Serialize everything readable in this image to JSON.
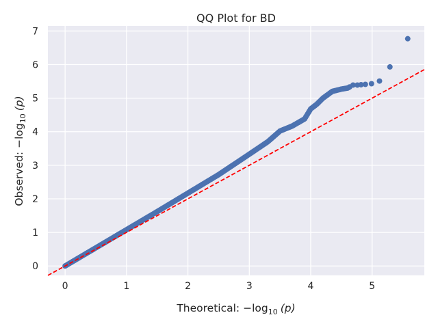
{
  "chart_data": {
    "type": "scatter",
    "title": "QQ Plot for BD",
    "xlabel": {
      "prefix": "Theoretical: ",
      "func": "−log",
      "sub": "10",
      "arg": "(p)"
    },
    "ylabel": {
      "prefix": "Observed: ",
      "func": "−log",
      "sub": "10",
      "arg": "(p)"
    },
    "xlim": [
      -0.28,
      5.85
    ],
    "ylim": [
      -0.28,
      7.15
    ],
    "xticks": [
      0,
      1,
      2,
      3,
      4,
      5
    ],
    "yticks": [
      0,
      1,
      2,
      3,
      4,
      5,
      6,
      7
    ],
    "grid": true,
    "series": [
      {
        "kind": "points",
        "color": "#4c72b0",
        "curve": [
          [
            0,
            0
          ],
          [
            0.5,
            0.54
          ],
          [
            1.0,
            1.08
          ],
          [
            1.5,
            1.62
          ],
          [
            2.0,
            2.17
          ],
          [
            2.5,
            2.72
          ],
          [
            3.0,
            3.33
          ],
          [
            3.3,
            3.7
          ],
          [
            3.5,
            4.02
          ],
          [
            3.7,
            4.17
          ],
          [
            3.9,
            4.38
          ],
          [
            4.0,
            4.68
          ],
          [
            4.1,
            4.82
          ],
          [
            4.2,
            5.0
          ],
          [
            4.35,
            5.2
          ],
          [
            4.5,
            5.27
          ],
          [
            4.6,
            5.3
          ],
          [
            4.65,
            5.35
          ]
        ],
        "tail": [
          [
            4.69,
            5.39
          ],
          [
            4.76,
            5.39
          ],
          [
            4.82,
            5.4
          ],
          [
            4.89,
            5.41
          ],
          [
            4.99,
            5.43
          ],
          [
            5.12,
            5.51
          ],
          [
            5.29,
            5.93
          ],
          [
            5.58,
            6.77
          ]
        ]
      },
      {
        "kind": "reference-line",
        "color": "#ff0000",
        "slope": 1,
        "intercept": 0,
        "dashed": true
      }
    ]
  }
}
